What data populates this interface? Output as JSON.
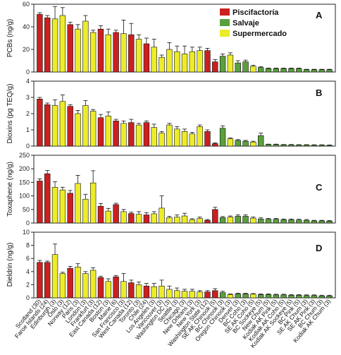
{
  "legend": [
    {
      "label": "Piscifactoría",
      "color": "#cc1f1f"
    },
    {
      "label": "Salvaje",
      "color": "#5aa03c"
    },
    {
      "label": "Supermercado",
      "color": "#ecec2a"
    }
  ],
  "chart_data": [
    {
      "type": "bar",
      "panel": "A",
      "ylabel": "PCBs (ng/g)",
      "ylim": [
        0,
        60
      ],
      "yticks": [
        0,
        20,
        40,
        60
      ],
      "categories": [
        "Scotland (30)",
        "Faroe Islands (24)",
        "Edinburgh (3)",
        "Oslo (3)",
        "Norway (12)",
        "Paris (3)",
        "London (3)",
        "Frankfurt (3)",
        "East Canada (12)",
        "Boston (3)",
        "Maine (6)",
        "San Francisco (3)",
        "West Canada (12)",
        "Toronto (3)",
        "Chile (24)",
        "Los Angeles (3)",
        "Vancouver (3)",
        "Washington DC (3)",
        "Seattle (3)",
        "Chicago (3)",
        "New Orleans (3)",
        "New York (3)",
        "Washington State (12)",
        "SE AK Chinook (5)",
        "BC Chinook (3)",
        "Oregon Chinook (3)",
        "Denver (3)",
        "BC Coho (3)",
        "SE AK Coho (5)",
        "BC Sockeye (5)",
        "New Chum (5)",
        "Kodiak AK Pink (5)",
        "Kodiak AK Coho (5)",
        "Kodiak AK Sockeye (5)",
        "BC Pink (5)",
        "SE AK Chum (3)",
        "SE AK Pink (3)",
        "BC Chum (3)",
        "Kodiak AK Chum (3)"
      ],
      "colors": [
        "red",
        "red",
        "yellow",
        "yellow",
        "red",
        "yellow",
        "yellow",
        "yellow",
        "red",
        "yellow",
        "red",
        "yellow",
        "red",
        "yellow",
        "red",
        "yellow",
        "yellow",
        "yellow",
        "yellow",
        "yellow",
        "yellow",
        "yellow",
        "red",
        "red",
        "green",
        "yellow",
        "green",
        "green",
        "yellow",
        "green",
        "green",
        "green",
        "green",
        "green",
        "green",
        "green",
        "green",
        "green",
        "green"
      ],
      "values": [
        51,
        48,
        47,
        50,
        42,
        38,
        45,
        35,
        38,
        33,
        35,
        34,
        33,
        29,
        25,
        22,
        13,
        20,
        18,
        16,
        18,
        19,
        19,
        9,
        14,
        15,
        8,
        9,
        5,
        4,
        3,
        3,
        3,
        3,
        3,
        2,
        2,
        2,
        2
      ],
      "errors": [
        1.5,
        2,
        11,
        7,
        2,
        4,
        5,
        2,
        3,
        5,
        2,
        12,
        10,
        4,
        5,
        7,
        2,
        6,
        5,
        7,
        4,
        3,
        2,
        2,
        2,
        2,
        2,
        1.5,
        1,
        0.6,
        0.5,
        0.5,
        0.5,
        0.5,
        0.5,
        0.4,
        0.4,
        0.4,
        0.4
      ]
    },
    {
      "type": "bar",
      "panel": "B",
      "ylabel": "Dioxins (pg TEQ/g)",
      "ylim": [
        0,
        4
      ],
      "yticks": [
        0,
        1,
        2,
        3,
        4
      ],
      "colors": [
        "red",
        "red",
        "yellow",
        "yellow",
        "red",
        "yellow",
        "yellow",
        "yellow",
        "red",
        "yellow",
        "red",
        "yellow",
        "red",
        "yellow",
        "red",
        "yellow",
        "yellow",
        "yellow",
        "yellow",
        "yellow",
        "yellow",
        "yellow",
        "red",
        "red",
        "green",
        "yellow",
        "green",
        "green",
        "yellow",
        "green",
        "green",
        "green",
        "green",
        "green",
        "green",
        "green",
        "green",
        "green",
        "green"
      ],
      "values": [
        2.9,
        2.55,
        2.5,
        2.75,
        2.45,
        2.0,
        2.5,
        2.15,
        1.75,
        1.85,
        1.55,
        1.4,
        1.45,
        1.3,
        1.45,
        1.15,
        0.8,
        1.3,
        1.05,
        0.9,
        0.75,
        1.2,
        0.9,
        0.15,
        1.1,
        0.45,
        0.35,
        0.3,
        0.25,
        0.65,
        0.1,
        0.1,
        0.08,
        0.08,
        0.07,
        0.07,
        0.06,
        0.06,
        0.05
      ],
      "errors": [
        0.1,
        0.1,
        0.35,
        0.4,
        0.1,
        0.2,
        0.3,
        0.1,
        0.2,
        0.25,
        0.1,
        0.15,
        0.2,
        0.1,
        0.1,
        0.2,
        0.1,
        0.1,
        0.15,
        0.15,
        0.1,
        0.1,
        0.1,
        0.05,
        0.15,
        0.05,
        0.05,
        0.05,
        0.05,
        0.15,
        0.02,
        0.02,
        0.02,
        0.02,
        0.02,
        0.02,
        0.02,
        0.02,
        0.02
      ]
    },
    {
      "type": "bar",
      "panel": "C",
      "ylabel": "Toxaphene (ng/g)",
      "ylim": [
        0,
        250
      ],
      "yticks": [
        0,
        50,
        100,
        150,
        200,
        250
      ],
      "colors": [
        "red",
        "red",
        "yellow",
        "yellow",
        "red",
        "yellow",
        "yellow",
        "yellow",
        "red",
        "yellow",
        "red",
        "yellow",
        "red",
        "yellow",
        "red",
        "yellow",
        "yellow",
        "yellow",
        "yellow",
        "yellow",
        "yellow",
        "yellow",
        "red",
        "red",
        "green",
        "yellow",
        "green",
        "green",
        "yellow",
        "green",
        "green",
        "green",
        "green",
        "green",
        "green",
        "green",
        "green",
        "green",
        "green"
      ],
      "values": [
        155,
        182,
        132,
        122,
        110,
        146,
        88,
        148,
        62,
        44,
        68,
        42,
        35,
        32,
        30,
        34,
        55,
        20,
        22,
        26,
        12,
        17,
        10,
        50,
        20,
        22,
        25,
        25,
        18,
        15,
        14,
        14,
        12,
        12,
        11,
        10,
        8,
        8,
        7
      ],
      "errors": [
        8,
        12,
        20,
        10,
        10,
        30,
        18,
        45,
        10,
        10,
        5,
        8,
        5,
        10,
        8,
        8,
        45,
        5,
        8,
        10,
        4,
        5,
        3,
        8,
        4,
        4,
        5,
        5,
        4,
        4,
        3,
        3,
        3,
        3,
        3,
        3,
        2,
        2,
        2
      ]
    },
    {
      "type": "bar",
      "panel": "D",
      "ylabel": "Dieldrin (ng/g)",
      "ylim": [
        0,
        10
      ],
      "yticks": [
        0,
        2,
        4,
        6,
        8,
        10
      ],
      "colors": [
        "red",
        "red",
        "yellow",
        "yellow",
        "red",
        "yellow",
        "yellow",
        "yellow",
        "red",
        "yellow",
        "red",
        "yellow",
        "red",
        "yellow",
        "red",
        "yellow",
        "yellow",
        "yellow",
        "yellow",
        "yellow",
        "yellow",
        "yellow",
        "red",
        "red",
        "green",
        "yellow",
        "green",
        "green",
        "yellow",
        "green",
        "green",
        "green",
        "green",
        "green",
        "green",
        "green",
        "green",
        "green",
        "green"
      ],
      "values": [
        5.4,
        5.4,
        6.6,
        3.7,
        4.5,
        4.7,
        3.7,
        4.2,
        3.1,
        2.5,
        3.2,
        2.5,
        2.3,
        2.0,
        1.8,
        1.7,
        1.8,
        1.3,
        1.1,
        1.0,
        1.0,
        0.9,
        0.9,
        1.1,
        0.8,
        0.5,
        0.6,
        0.6,
        0.55,
        0.5,
        0.5,
        0.45,
        0.45,
        0.4,
        0.4,
        0.35,
        0.35,
        0.3,
        0.3
      ],
      "errors": [
        0.3,
        0.2,
        1.6,
        0.2,
        0.3,
        0.5,
        0.3,
        0.4,
        0.2,
        0.4,
        0.2,
        1.2,
        0.4,
        0.4,
        0.4,
        0.5,
        0.9,
        0.5,
        0.4,
        0.3,
        0.3,
        0.2,
        0.2,
        0.3,
        0.2,
        0.1,
        0.1,
        0.1,
        0.1,
        0.1,
        0.1,
        0.1,
        0.1,
        0.1,
        0.1,
        0.1,
        0.1,
        0.1,
        0.1
      ]
    }
  ],
  "colors": {
    "red": "#cc1f1f",
    "green": "#5aa03c",
    "yellow": "#ecec2a",
    "axis": "#222222"
  }
}
